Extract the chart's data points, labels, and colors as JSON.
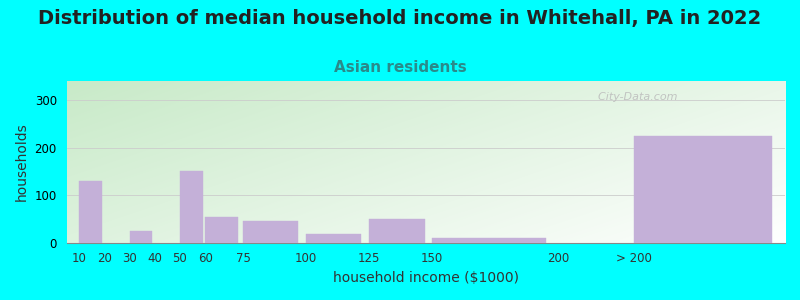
{
  "title": "Distribution of median household income in Whitehall, PA in 2022",
  "subtitle": "Asian residents",
  "xlabel": "household income ($1000)",
  "ylabel": "households",
  "background_color": "#00FFFF",
  "plot_bg_top_left": "#c8eac8",
  "plot_bg_bottom_right": "#ffffff",
  "bar_color": "#c4b0d8",
  "bar_edge_color": "#c4b0d8",
  "categories": [
    "10",
    "20",
    "30",
    "40",
    "50",
    "60",
    "75",
    "100",
    "125",
    "150",
    "200",
    "> 200"
  ],
  "values": [
    130,
    0,
    25,
    0,
    150,
    55,
    45,
    18,
    50,
    10,
    0,
    225
  ],
  "ylim": [
    0,
    340
  ],
  "yticks": [
    0,
    100,
    200,
    300
  ],
  "title_fontsize": 14,
  "subtitle_fontsize": 11,
  "subtitle_color": "#2a8a8a",
  "axis_label_fontsize": 10,
  "tick_fontsize": 8.5,
  "watermark": "  City-Data.com",
  "title_color": "#222222"
}
